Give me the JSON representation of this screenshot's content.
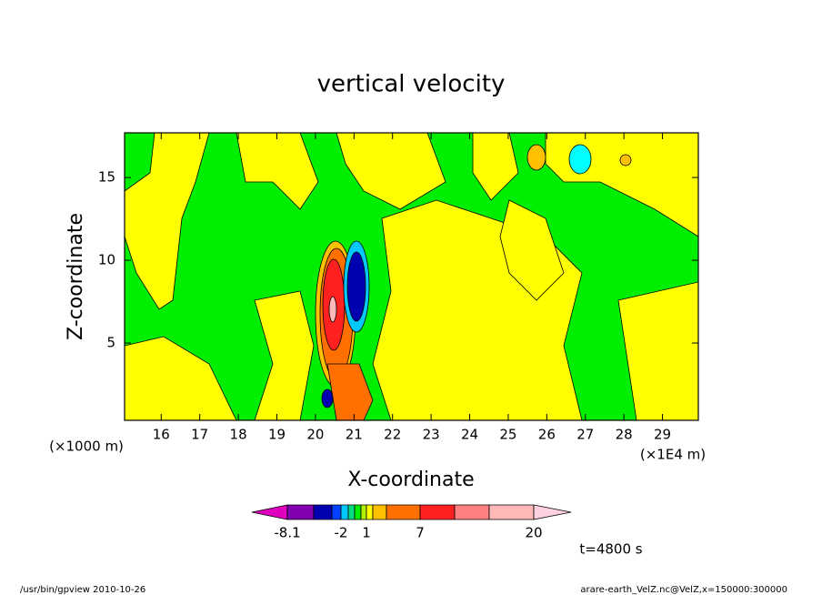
{
  "chart_data": {
    "type": "contour",
    "title": "vertical velocity",
    "x_label": "X-coordinate",
    "y_label": "Z-coordinate",
    "x_unit": "(×1E4 m)",
    "y_unit": "(×1000 m)",
    "xlim": [
      15.05,
      29.93
    ],
    "ylim": [
      0.33,
      17.7
    ],
    "xticks": [
      16,
      17,
      18,
      19,
      20,
      21,
      22,
      23,
      24,
      25,
      26,
      27,
      28,
      29
    ],
    "yticks": [
      5,
      10,
      15
    ],
    "colorbar": {
      "colors": [
        "#e000c0",
        "#8000b0",
        "#0000b0",
        "#0040ff",
        "#00c8ff",
        "#00dd80",
        "#00ee00",
        "#b0f000",
        "#ffff00",
        "#ffc000",
        "#ff7000",
        "#ff2020",
        "#ff8080",
        "#ffb8b8",
        "#ffd0e0"
      ],
      "ticks": [
        -8.1,
        -2,
        1,
        7,
        20
      ]
    },
    "annotation": "t=4800 s",
    "footer_left": "/usr/bin/gpview  2010-10-26",
    "footer_right": "arare-earth_VelZ.nc@VelZ,x=150000:300000"
  }
}
